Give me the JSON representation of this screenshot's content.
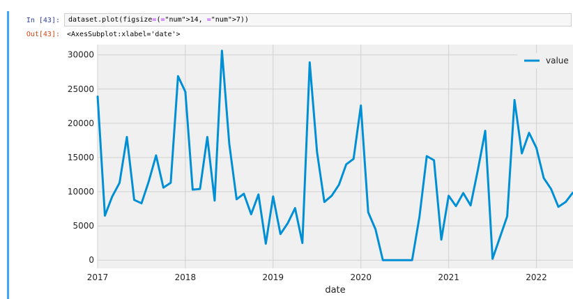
{
  "cell": {
    "in_prompt": "In [43]:",
    "out_prompt": "Out[43]:",
    "code": "dataset.plot(figsize=(14, 7))",
    "output_text": "<AxesSubplot:xlabel='date'>"
  },
  "colors": {
    "line": "#008fd5",
    "plot_bg": "#f0f0f0",
    "grid": "#d0d0d0",
    "cell_bar": "#42a5f5"
  },
  "chart_data": {
    "type": "line",
    "title": "",
    "xlabel": "date",
    "ylabel": "",
    "xlim": [
      "2017-01",
      "2022-06"
    ],
    "ylim": [
      -1200,
      31500
    ],
    "yticks": [
      0,
      5000,
      10000,
      15000,
      20000,
      25000,
      30000
    ],
    "ytick_labels": [
      "0",
      "5000",
      "10000",
      "15000",
      "20000",
      "25000",
      "30000"
    ],
    "xticks": [
      "2017-01",
      "2018-01",
      "2019-01",
      "2020-01",
      "2021-01",
      "2022-01"
    ],
    "xtick_labels": [
      "2017",
      "2018",
      "2019",
      "2020",
      "2021",
      "2022"
    ],
    "grid": true,
    "legend_position": "top-right",
    "series": [
      {
        "name": "value",
        "x": [
          "2017-01",
          "2017-02",
          "2017-03",
          "2017-04",
          "2017-05",
          "2017-06",
          "2017-07",
          "2017-08",
          "2017-09",
          "2017-10",
          "2017-11",
          "2017-12",
          "2018-01",
          "2018-02",
          "2018-03",
          "2018-04",
          "2018-05",
          "2018-06",
          "2018-07",
          "2018-08",
          "2018-09",
          "2018-10",
          "2018-11",
          "2018-12",
          "2019-01",
          "2019-02",
          "2019-03",
          "2019-04",
          "2019-05",
          "2019-06",
          "2019-07",
          "2019-08",
          "2019-09",
          "2019-10",
          "2019-11",
          "2019-12",
          "2020-01",
          "2020-02",
          "2020-03",
          "2020-04",
          "2020-05",
          "2020-06",
          "2020-07",
          "2020-08",
          "2020-09",
          "2020-10",
          "2020-11",
          "2020-12",
          "2021-01",
          "2021-02",
          "2021-03",
          "2021-04",
          "2021-05",
          "2021-06",
          "2021-07",
          "2021-08",
          "2021-09",
          "2021-10",
          "2021-11",
          "2021-12",
          "2022-01",
          "2022-02",
          "2022-03",
          "2022-04",
          "2022-05",
          "2022-06"
        ],
        "values": [
          24000,
          6500,
          9300,
          11300,
          18000,
          8800,
          8300,
          11500,
          15300,
          10600,
          11300,
          26900,
          24600,
          10300,
          10400,
          18000,
          8700,
          30600,
          17000,
          8900,
          9700,
          6700,
          9600,
          2400,
          9300,
          3800,
          5400,
          7600,
          2500,
          28900,
          15800,
          8500,
          9400,
          11000,
          14000,
          14800,
          22600,
          7000,
          4500,
          0,
          0,
          0,
          0,
          0,
          6300,
          15200,
          14600,
          3000,
          9400,
          7900,
          9800,
          8000,
          13200,
          18900,
          200,
          3300,
          6400,
          23400,
          15600,
          18600,
          16400,
          12000,
          10400,
          7800,
          8500,
          9900
        ]
      }
    ]
  }
}
